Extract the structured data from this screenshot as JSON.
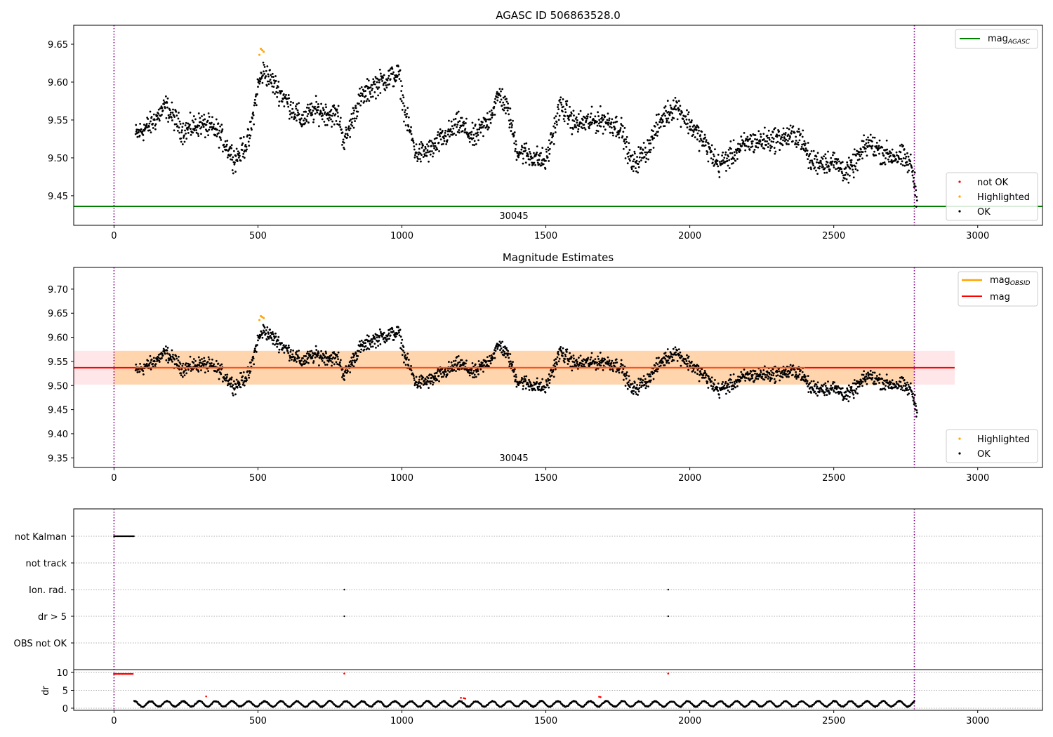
{
  "figure": {
    "panels": {
      "top": {
        "title": "AGASC ID 506863528.0",
        "obsid_label": "30045",
        "legend_line": {
          "label_main": "mag",
          "label_sub": "AGASC",
          "color": "#008000"
        },
        "legend_points": [
          {
            "label": "not OK",
            "color": "#ff0000"
          },
          {
            "label": "Highlighted",
            "color": "#ffa500"
          },
          {
            "label": "OK",
            "color": "#000000"
          }
        ]
      },
      "middle": {
        "title": "Magnitude Estimates",
        "obsid_label": "30045",
        "legend_lines": [
          {
            "label_main": "mag",
            "label_sub": "OBSID",
            "color": "#ffa500"
          },
          {
            "label_main": "mag",
            "label_sub": "",
            "color": "#ff0000"
          }
        ],
        "legend_points": [
          {
            "label": "Highlighted",
            "color": "#ffa500"
          },
          {
            "label": "OK",
            "color": "#000000"
          }
        ]
      },
      "flags": {
        "row_labels": [
          "not Kalman",
          "not track",
          "Ion. rad.",
          "dr > 5",
          "OBS not OK"
        ]
      },
      "dr": {
        "ylabel": "dr"
      }
    }
  },
  "chart_data": [
    {
      "type": "scatter",
      "panel": "top",
      "title": "AGASC ID 506863528.0",
      "xlim": [
        -140,
        3225
      ],
      "ylim": [
        9.411,
        9.675
      ],
      "x_ticks": [
        0,
        500,
        1000,
        1500,
        2000,
        2500,
        3000
      ],
      "y_ticks": [
        9.45,
        9.5,
        9.55,
        9.6,
        9.65
      ],
      "y_tick_labels": [
        "9.45",
        "9.50",
        "9.55",
        "9.60",
        "9.65"
      ],
      "hlines": [
        {
          "name": "mag_AGASC",
          "y": 9.436,
          "x_range": [
            -140,
            3225
          ],
          "color": "#008000"
        }
      ],
      "vlines": [
        0,
        2780
      ],
      "annotation": {
        "text": "30045",
        "x": 1390
      },
      "series": [
        {
          "name": "OK",
          "color": "#000000",
          "trend": [
            [
              75,
              9.53
            ],
            [
              130,
              9.545
            ],
            [
              180,
              9.568
            ],
            [
              240,
              9.535
            ],
            [
              300,
              9.545
            ],
            [
              360,
              9.535
            ],
            [
              420,
              9.498
            ],
            [
              470,
              9.525
            ],
            [
              500,
              9.595
            ],
            [
              520,
              9.615
            ],
            [
              600,
              9.575
            ],
            [
              650,
              9.55
            ],
            [
              700,
              9.563
            ],
            [
              780,
              9.555
            ],
            [
              800,
              9.52
            ],
            [
              850,
              9.575
            ],
            [
              900,
              9.595
            ],
            [
              950,
              9.605
            ],
            [
              990,
              9.61
            ],
            [
              1010,
              9.56
            ],
            [
              1050,
              9.505
            ],
            [
              1100,
              9.51
            ],
            [
              1150,
              9.528
            ],
            [
              1200,
              9.545
            ],
            [
              1250,
              9.525
            ],
            [
              1300,
              9.55
            ],
            [
              1340,
              9.585
            ],
            [
              1370,
              9.56
            ],
            [
              1400,
              9.51
            ],
            [
              1500,
              9.495
            ],
            [
              1550,
              9.57
            ],
            [
              1600,
              9.545
            ],
            [
              1700,
              9.55
            ],
            [
              1760,
              9.54
            ],
            [
              1800,
              9.49
            ],
            [
              1850,
              9.51
            ],
            [
              1900,
              9.55
            ],
            [
              1950,
              9.57
            ],
            [
              2000,
              9.545
            ],
            [
              2050,
              9.52
            ],
            [
              2100,
              9.49
            ],
            [
              2150,
              9.505
            ],
            [
              2200,
              9.52
            ],
            [
              2300,
              9.525
            ],
            [
              2380,
              9.53
            ],
            [
              2420,
              9.495
            ],
            [
              2500,
              9.495
            ],
            [
              2550,
              9.48
            ],
            [
              2620,
              9.52
            ],
            [
              2680,
              9.505
            ],
            [
              2740,
              9.5
            ],
            [
              2770,
              9.49
            ],
            [
              2790,
              9.445
            ]
          ],
          "spread": 0.011
        },
        {
          "name": "Highlighted",
          "color": "#ffa500",
          "x": [
            505,
            510,
            515,
            520
          ],
          "y": [
            9.636,
            9.644,
            9.642,
            9.64
          ]
        }
      ]
    },
    {
      "type": "scatter",
      "panel": "middle",
      "title": "Magnitude Estimates",
      "xlim": [
        -140,
        3225
      ],
      "ylim": [
        9.33,
        9.745
      ],
      "x_ticks": [
        0,
        500,
        1000,
        1500,
        2000,
        2500,
        3000
      ],
      "y_ticks": [
        9.35,
        9.4,
        9.45,
        9.5,
        9.55,
        9.6,
        9.65,
        9.7
      ],
      "y_tick_labels": [
        "9.35",
        "9.40",
        "9.45",
        "9.50",
        "9.55",
        "9.60",
        "9.65",
        "9.70"
      ],
      "hlines": [
        {
          "name": "mag",
          "y": 9.537,
          "x_range": [
            -140,
            2920
          ],
          "color": "#ff0000"
        }
      ],
      "bands": [
        {
          "name": "mag_band",
          "y": [
            9.502,
            9.572
          ],
          "x_range": [
            -140,
            2920
          ],
          "color": "#ffb6c1",
          "opacity": 0.35
        },
        {
          "name": "mag_OBSID_band",
          "y": [
            9.502,
            9.572
          ],
          "x_range": [
            0,
            2780
          ],
          "color": "#ffa500",
          "opacity": 0.25
        }
      ],
      "obsid_segments": [
        {
          "x_range": [
            75,
            2400
          ],
          "y": 9.537
        }
      ],
      "vlines": [
        0,
        2780
      ],
      "annotation": {
        "text": "30045",
        "x": 1390
      },
      "series": [
        {
          "name": "OK",
          "color": "#000000",
          "same_as": "top"
        },
        {
          "name": "Highlighted",
          "color": "#ffa500",
          "x": [
            505,
            510,
            515,
            520
          ],
          "y": [
            9.636,
            9.644,
            9.642,
            9.64
          ]
        }
      ]
    },
    {
      "type": "scatter",
      "panel": "flags",
      "xlim": [
        -140,
        3225
      ],
      "categories": [
        "not Kalman",
        "not track",
        "Ion. rad.",
        "dr > 5",
        "OBS not OK"
      ],
      "vlines": [
        0,
        2780
      ],
      "points": [
        {
          "row": "not Kalman",
          "x_range": [
            0,
            70
          ]
        },
        {
          "row": "Ion. rad.",
          "x": [
            800,
            1925
          ]
        },
        {
          "row": "dr > 5",
          "x": [
            800,
            1925
          ]
        }
      ]
    },
    {
      "type": "scatter",
      "panel": "dr",
      "ylabel": "dr",
      "xlim": [
        -140,
        3225
      ],
      "ylim": [
        -0.6,
        10.8
      ],
      "x_ticks": [
        0,
        500,
        1000,
        1500,
        2000,
        2500,
        3000
      ],
      "y_ticks": [
        0,
        5,
        10
      ],
      "y_tick_labels": [
        "0",
        "5",
        "10"
      ],
      "vlines": [
        0,
        2780
      ],
      "series": [
        {
          "name": "dr",
          "color": "#000000",
          "x_range": [
            70,
            2780
          ],
          "y_range": [
            0.3,
            2.2
          ]
        },
        {
          "name": "dr_not_ok",
          "color": "#ff0000",
          "x": [
            0,
            5,
            10,
            15,
            20,
            25,
            30,
            35,
            40,
            45,
            50,
            55,
            60,
            65,
            320,
            1205,
            1215,
            1220,
            1685,
            1690,
            800,
            1925
          ],
          "y": [
            9.6,
            9.6,
            9.6,
            9.6,
            9.6,
            9.6,
            9.6,
            9.6,
            9.6,
            9.6,
            9.6,
            9.6,
            9.6,
            9.6,
            3.3,
            2.9,
            2.8,
            2.7,
            3.2,
            3.1,
            9.7,
            9.7
          ]
        }
      ]
    }
  ]
}
